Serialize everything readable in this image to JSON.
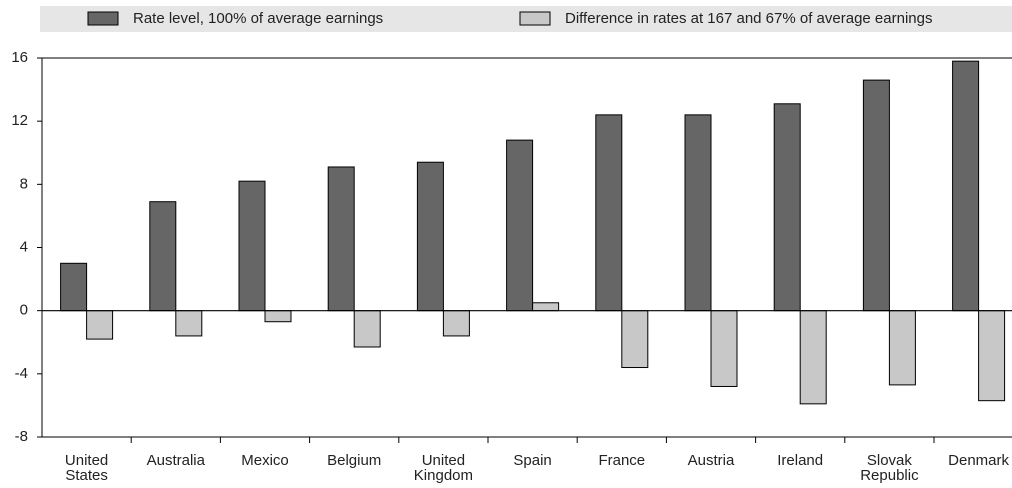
{
  "chart_data": {
    "type": "bar",
    "categories": [
      "United States",
      "Australia",
      "Mexico",
      "Belgium",
      "United Kingdom",
      "Spain",
      "France",
      "Austria",
      "Ireland",
      "Slovak Republic",
      "Denmark"
    ],
    "series": [
      {
        "name": "Rate level, 100% of average earnings",
        "color": "#666666",
        "values": [
          3.0,
          6.9,
          8.2,
          9.1,
          9.4,
          10.8,
          12.4,
          12.4,
          13.1,
          14.6,
          15.8
        ]
      },
      {
        "name": "Difference in rates at 167 and 67% of average earnings",
        "color": "#c8c8c8",
        "values": [
          -1.8,
          -1.6,
          -0.7,
          -2.3,
          -1.6,
          0.5,
          -3.6,
          -4.8,
          -5.9,
          -4.7,
          -5.7
        ]
      }
    ],
    "ylim": [
      -8,
      16
    ],
    "yticks": [
      16,
      12,
      8,
      4,
      0,
      -4,
      -8
    ],
    "legend": "top"
  }
}
